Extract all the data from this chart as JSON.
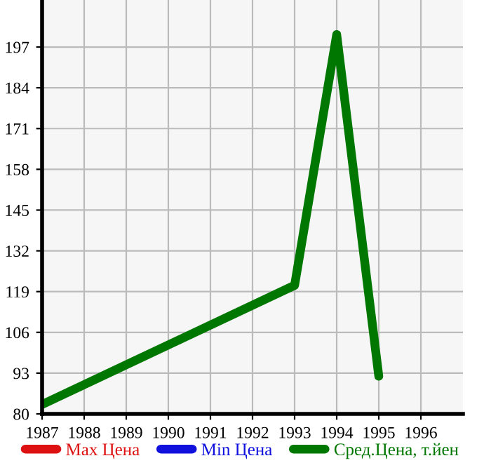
{
  "chart_data": {
    "type": "line",
    "x": [
      1987,
      1993,
      1994,
      1995
    ],
    "series": [
      {
        "name": "Max Цена",
        "color": "#dd1111",
        "values": [
          null,
          null,
          null,
          null
        ]
      },
      {
        "name": "Min Цена",
        "color": "#1111dd",
        "values": [
          null,
          null,
          null,
          null
        ]
      },
      {
        "name": "Сред.Цена, т.йен",
        "color": "#007700",
        "values": [
          83,
          121,
          201,
          92
        ]
      }
    ],
    "xlim": [
      1987,
      1997
    ],
    "xticks": [
      1987,
      1988,
      1989,
      1990,
      1991,
      1992,
      1993,
      1994,
      1995,
      1996
    ],
    "ylim": [
      80,
      212
    ],
    "yticks": [
      80,
      93,
      106,
      119,
      132,
      145,
      158,
      171,
      184,
      197
    ],
    "grid": true,
    "legend": "bottom",
    "marker": "none",
    "line_style": "solid"
  }
}
